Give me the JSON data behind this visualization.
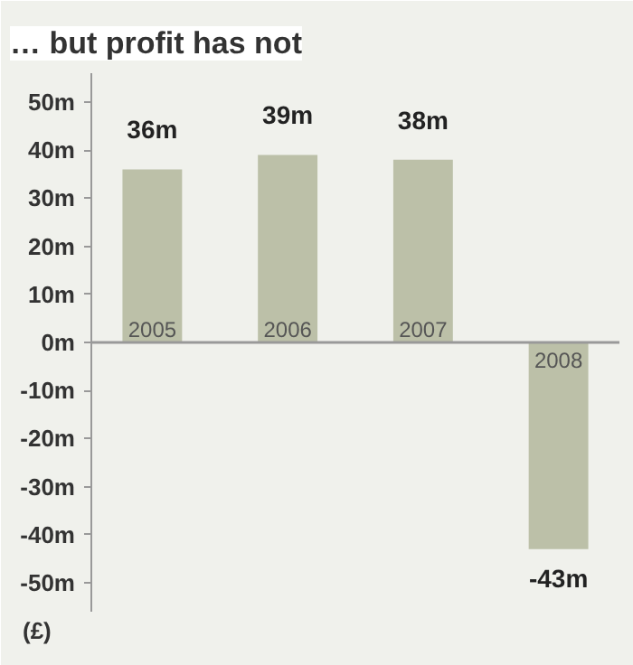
{
  "chart_data": {
    "type": "bar",
    "title": "… but profit has not",
    "ylabel": "(£)",
    "categories": [
      "2005",
      "2006",
      "2007",
      "2008"
    ],
    "values": [
      36,
      39,
      38,
      -43
    ],
    "value_labels": [
      "36m",
      "39m",
      "38m",
      "-43m"
    ],
    "color": "#bcc0a8",
    "ylim": [
      -56,
      56
    ],
    "yticks": [
      {
        "value": 50,
        "label": "50m"
      },
      {
        "value": 40,
        "label": "40m"
      },
      {
        "value": 30,
        "label": "30m"
      },
      {
        "value": 20,
        "label": "20m"
      },
      {
        "value": 10,
        "label": "10m"
      },
      {
        "value": 0,
        "label": "0m"
      },
      {
        "value": -10,
        "label": "-10m"
      },
      {
        "value": -20,
        "label": "-20m"
      },
      {
        "value": -30,
        "label": "-30m"
      },
      {
        "value": -40,
        "label": "-40m"
      },
      {
        "value": -50,
        "label": "-50m"
      }
    ],
    "grid": false
  }
}
